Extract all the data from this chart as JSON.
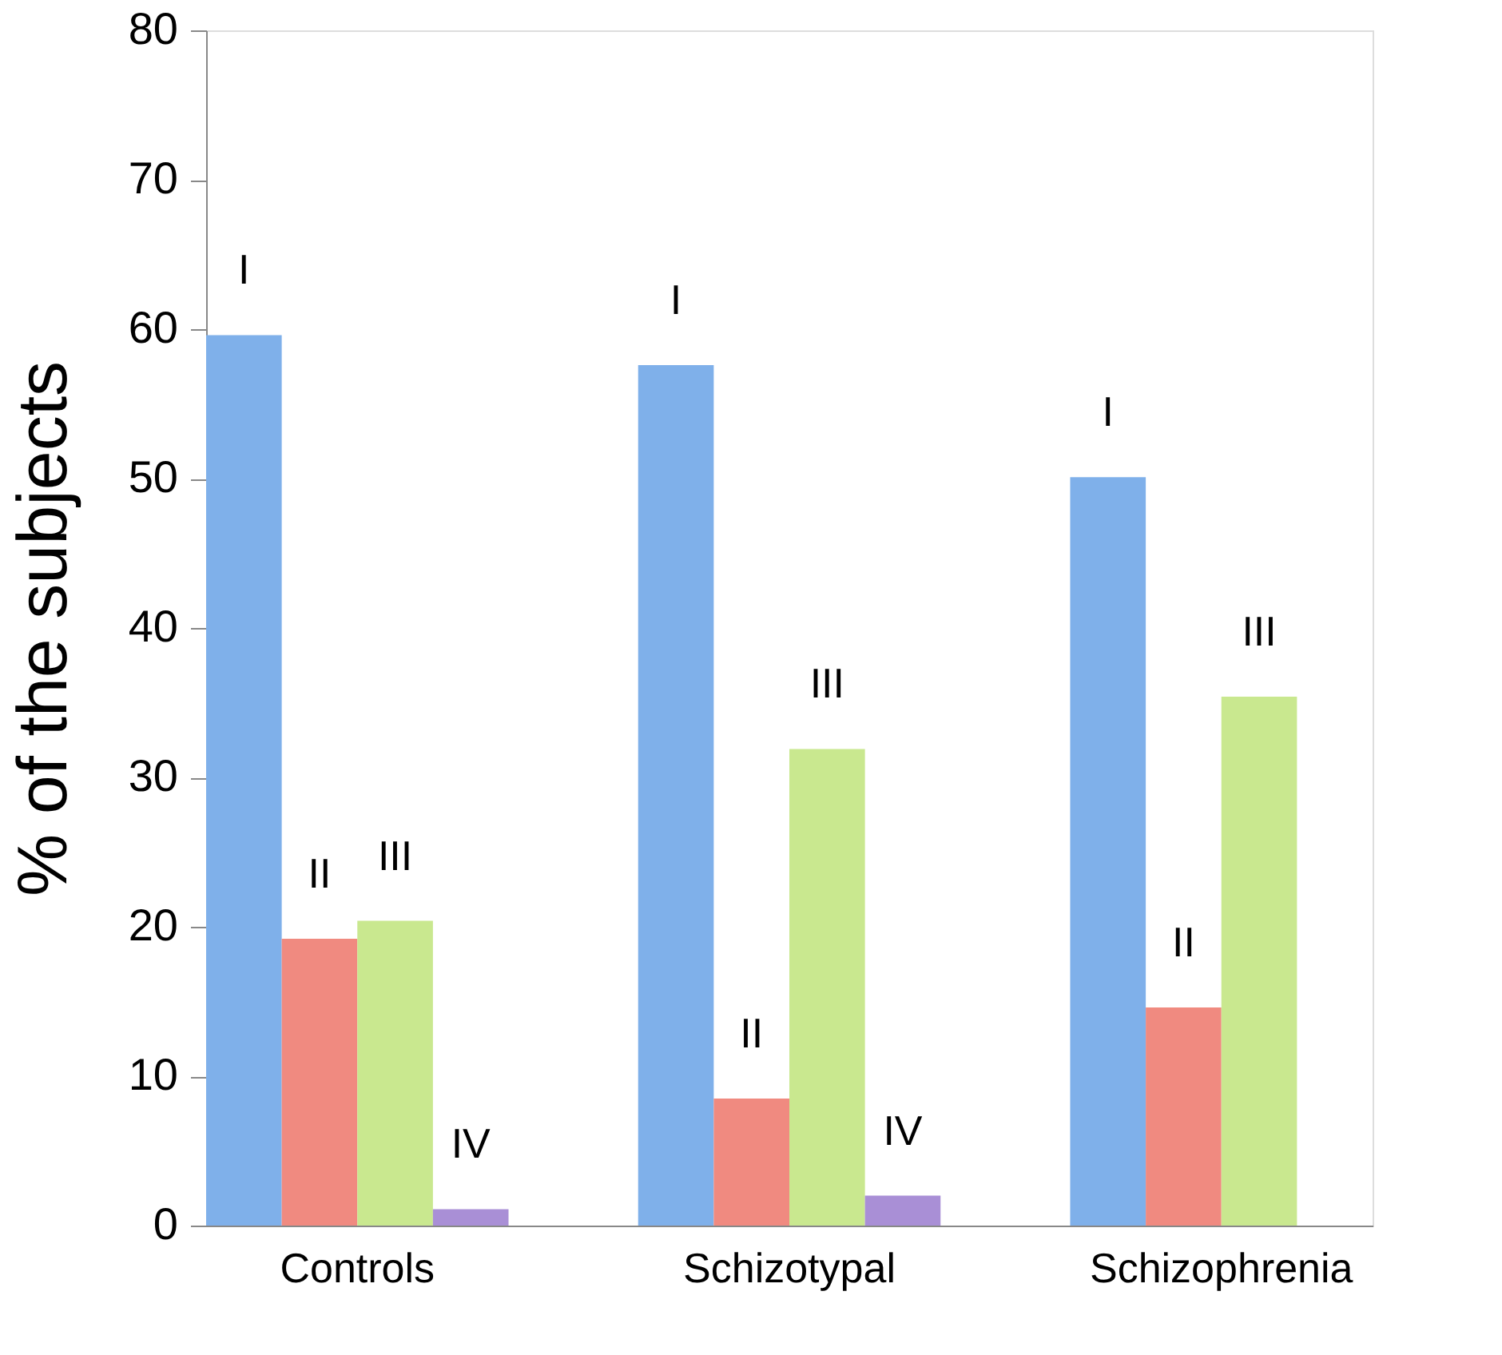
{
  "chart_data": {
    "type": "bar",
    "ylabel": "% of the subjects",
    "categories": [
      "Controls",
      "Schizotypal",
      "Schizophrenia"
    ],
    "series": [
      {
        "name": "I",
        "color": "#7fb0ea",
        "values": [
          59.6,
          57.6,
          50.1
        ]
      },
      {
        "name": "II",
        "color": "#f08a80",
        "values": [
          19.2,
          8.5,
          14.6
        ]
      },
      {
        "name": "III",
        "color": "#c9e88f",
        "values": [
          20.4,
          31.9,
          35.4
        ]
      },
      {
        "name": "IV",
        "color": "#a98fd6",
        "values": [
          1.1,
          2.0,
          null
        ]
      }
    ],
    "ylim": [
      0,
      80
    ],
    "yticks": [
      0,
      10,
      20,
      30,
      40,
      50,
      60,
      70,
      80
    ],
    "grid": false,
    "legend": false
  }
}
